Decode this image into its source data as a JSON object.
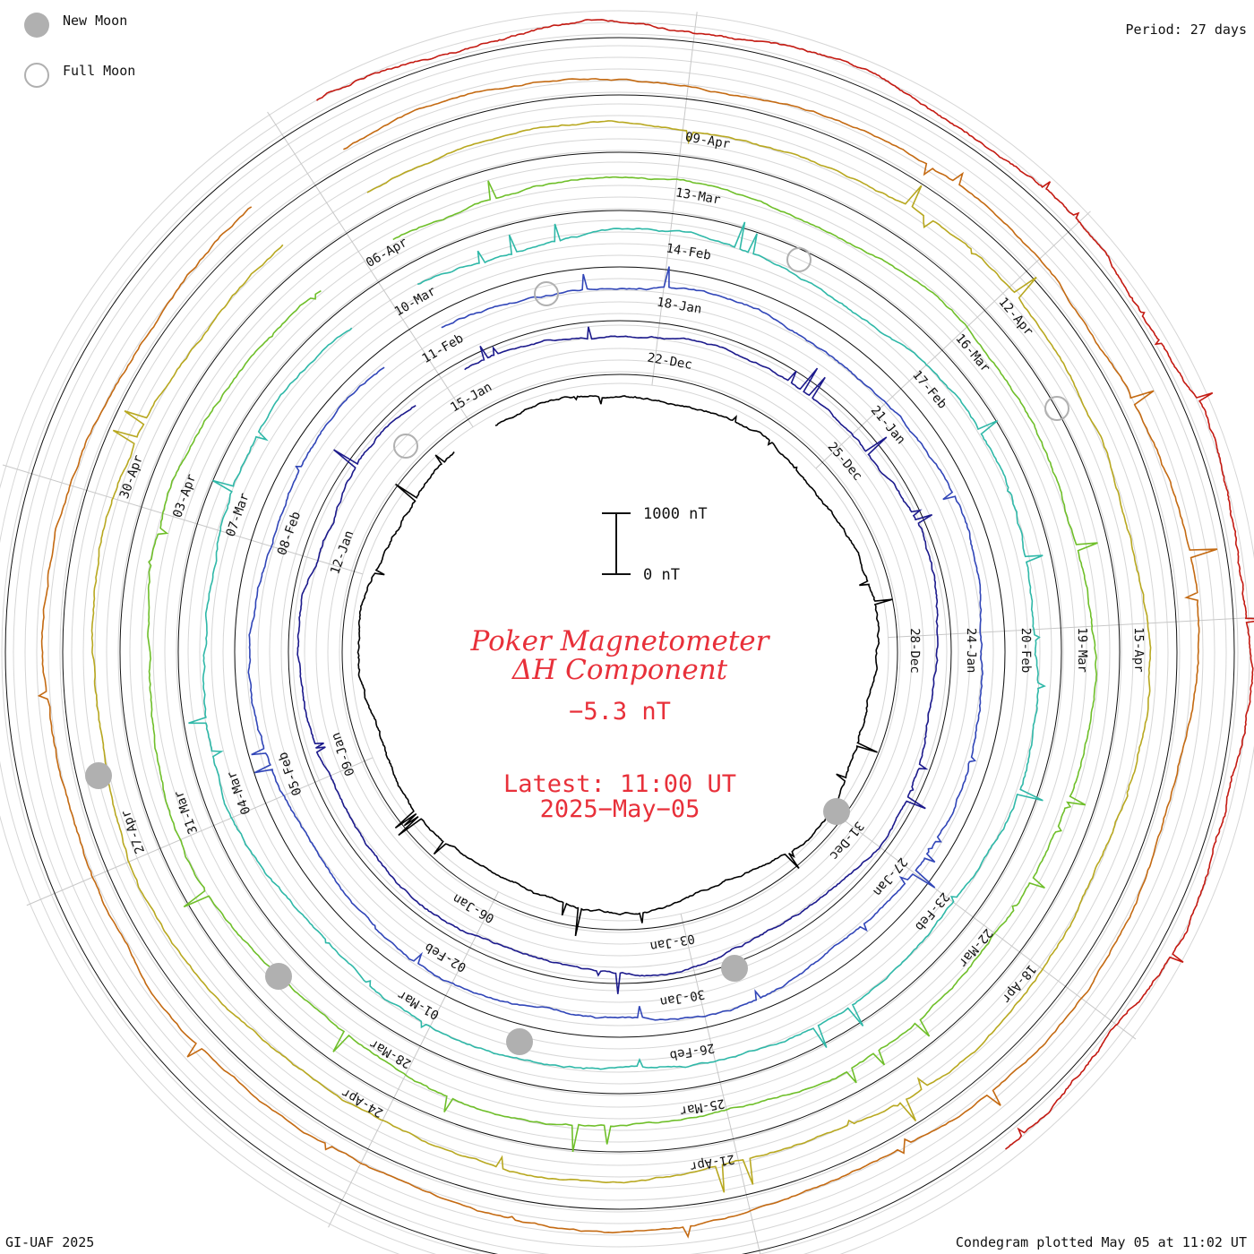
{
  "legend": {
    "new_moon": {
      "label": "New Moon",
      "icon": "filled-circle-icon",
      "color": "#b0b0b0"
    },
    "full_moon": {
      "label": "Full Moon",
      "icon": "open-circle-icon",
      "color": "#b0b0b0"
    }
  },
  "period_label": "Period: 27 days",
  "credit": "GI-UAF 2025",
  "plotted_label": "Condegram plotted May 05 at 11:02 UT",
  "center": {
    "title_line1": "Poker Magnetometer",
    "title_line2": "ΔH Component",
    "current_value": "−5.3 nT",
    "latest_time": "Latest: 11:00 UT",
    "latest_date": "2025−May−05"
  },
  "chart_data": {
    "type": "line",
    "layout": "spiral condegram",
    "period_days": 27,
    "scale_bar": {
      "top_label": "1000 nT",
      "bottom_label": "0 nT",
      "value_nT": 1000
    },
    "series": [
      {
        "name": "",
        "color": "#000000",
        "start_date": "2024-12-20",
        "end_date": "2025-01-15"
      },
      {
        "name": "",
        "color": "#1c1a8c",
        "start_date": "2025-01-15",
        "end_date": "2025-02-11"
      },
      {
        "name": "",
        "color": "#3146b8",
        "start_date": "2025-02-11",
        "end_date": "2025-03-10"
      },
      {
        "name": "",
        "color": "#2fb8a8",
        "start_date": "2025-03-10",
        "end_date": "2025-04-06"
      },
      {
        "name": "",
        "color": "#6fbf2a",
        "start_date": "2025-04-06",
        "end_date": "2025-05-03"
      },
      {
        "name": "",
        "color": "#b8a820",
        "start_date": "2025-04-06",
        "end_date": "2025-05-03"
      },
      {
        "name": "",
        "color": "#c46a12",
        "start_date": "2025-04-06",
        "end_date": "2025-05-03"
      },
      {
        "name": "",
        "color": "#c41a12",
        "start_date": "2025-04-27",
        "end_date": "2025-05-05"
      }
    ],
    "date_labels": [
      [
        "22-Dec",
        "25-Dec",
        "28-Dec",
        "31-Dec",
        "03-Jan",
        "06-Jan",
        "09-Jan",
        "12-Jan",
        "15-Jan"
      ],
      [
        "18-Jan",
        "21-Jan",
        "24-Jan",
        "27-Jan",
        "30-Jan",
        "02-Feb",
        "05-Feb",
        "08-Feb",
        "11-Feb"
      ],
      [
        "14-Feb",
        "17-Feb",
        "20-Feb",
        "23-Feb",
        "26-Feb",
        "01-Mar",
        "04-Mar",
        "07-Mar",
        "10-Mar"
      ],
      [
        "13-Mar",
        "16-Mar",
        "19-Mar",
        "22-Mar",
        "25-Mar",
        "28-Mar",
        "31-Mar",
        "03-Apr",
        "06-Apr"
      ],
      [
        "09-Apr",
        "12-Apr",
        "15-Apr",
        "18-Apr",
        "21-Apr",
        "24-Apr",
        "27-Apr",
        "30-Apr"
      ]
    ],
    "moon_phases": {
      "new_moon_dates": [
        "2024-12-30",
        "2025-01-29",
        "2025-02-28",
        "2025-03-29",
        "2025-04-27"
      ],
      "full_moon_dates": [
        "2025-01-13",
        "2025-02-12",
        "2025-03-14",
        "2025-04-13"
      ]
    },
    "grid": true
  }
}
